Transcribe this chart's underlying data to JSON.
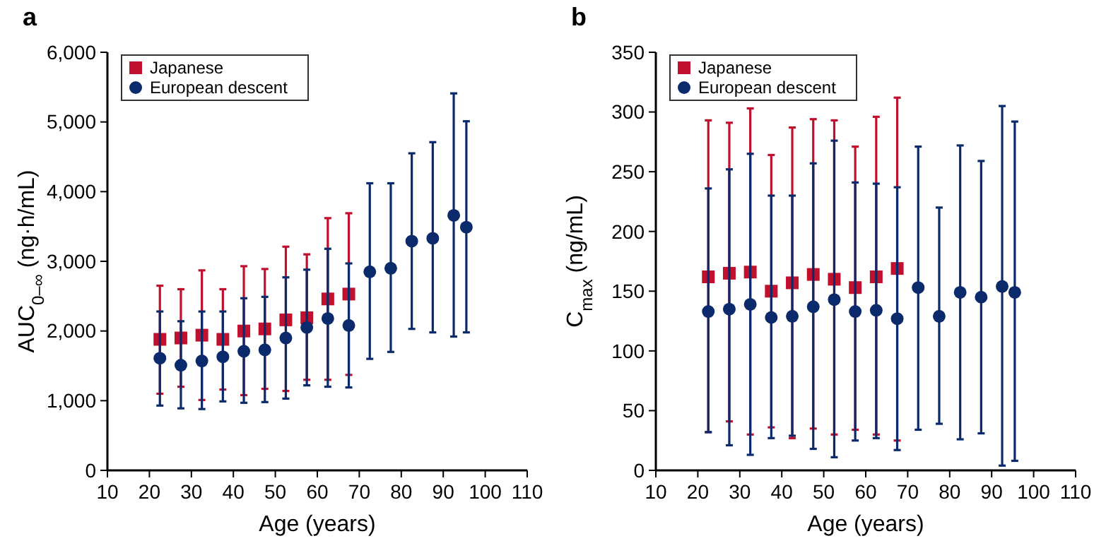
{
  "chart_data": [
    {
      "type": "scatter",
      "title": "a",
      "xlabel": "Age (years)",
      "ylabel": "AUC$_{0–∞}$ (ng·h/mL)",
      "xlim": [
        10,
        110
      ],
      "xticks": [
        10,
        20,
        30,
        40,
        50,
        60,
        70,
        80,
        90,
        100,
        110
      ],
      "ylim": [
        0,
        6000
      ],
      "yticks": [
        {
          "value": 0,
          "label": "0"
        },
        {
          "value": 1000,
          "label": "1,000"
        },
        {
          "value": 2000,
          "label": "2,000"
        },
        {
          "value": 3000,
          "label": "3,000"
        },
        {
          "value": 4000,
          "label": "4,000"
        },
        {
          "value": 5000,
          "label": "5,000"
        },
        {
          "value": 6000,
          "label": "6,000"
        }
      ],
      "grid": false,
      "legend": "top left",
      "series": [
        {
          "name": "Japanese",
          "color": "#c0102e",
          "marker": "square",
          "x": [
            22.5,
            27.5,
            32.5,
            37.5,
            42.5,
            47.5,
            52.5,
            57.5,
            62.5,
            67.5
          ],
          "values": [
            1880,
            1900,
            1940,
            1880,
            2000,
            2030,
            2160,
            2190,
            2460,
            2530
          ],
          "errors": [
            [
              1100,
              2650
            ],
            [
              1200,
              2600
            ],
            [
              1010,
              2870
            ],
            [
              1160,
              2600
            ],
            [
              1080,
              2930
            ],
            [
              1170,
              2890
            ],
            [
              1140,
              3210
            ],
            [
              1300,
              3100
            ],
            [
              1300,
              3620
            ],
            [
              1370,
              3690
            ]
          ]
        },
        {
          "name": "European descent",
          "color": "#0b2a6b",
          "marker": "circle",
          "x": [
            22.5,
            27.5,
            32.5,
            37.5,
            42.5,
            47.5,
            52.5,
            57.5,
            62.5,
            67.5,
            72.5,
            77.5,
            82.5,
            87.5,
            92.5,
            95.5
          ],
          "values": [
            1610,
            1510,
            1570,
            1630,
            1710,
            1730,
            1900,
            2050,
            2180,
            2080,
            2850,
            2900,
            3290,
            3330,
            3660,
            3490
          ],
          "errors": [
            [
              930,
              2280
            ],
            [
              890,
              2140
            ],
            [
              880,
              2280
            ],
            [
              990,
              2280
            ],
            [
              970,
              2470
            ],
            [
              980,
              2490
            ],
            [
              1030,
              2770
            ],
            [
              1220,
              2880
            ],
            [
              1200,
              3180
            ],
            [
              1190,
              2970
            ],
            [
              1600,
              4120
            ],
            [
              1700,
              4120
            ],
            [
              2030,
              4550
            ],
            [
              1980,
              4710
            ],
            [
              1920,
              5410
            ],
            [
              1980,
              5010
            ]
          ]
        }
      ]
    },
    {
      "type": "scatter",
      "title": "b",
      "xlabel": "Age (years)",
      "ylabel": "C$_{max}$ (ng/mL)",
      "xlim": [
        10,
        110
      ],
      "xticks": [
        10,
        20,
        30,
        40,
        50,
        60,
        70,
        80,
        90,
        100,
        110
      ],
      "ylim": [
        0,
        350
      ],
      "yticks": [
        0,
        50,
        100,
        150,
        200,
        250,
        300,
        350
      ],
      "grid": false,
      "legend": "top left",
      "series": [
        {
          "name": "Japanese",
          "color": "#c0102e",
          "marker": "square",
          "x": [
            22.5,
            27.5,
            32.5,
            37.5,
            42.5,
            47.5,
            52.5,
            57.5,
            62.5,
            67.5
          ],
          "values": [
            162,
            165,
            166,
            150,
            157,
            164,
            160,
            153,
            162,
            169
          ],
          "errors": [
            [
              32,
              293
            ],
            [
              41,
              291
            ],
            [
              30,
              303
            ],
            [
              36,
              264
            ],
            [
              27,
              287
            ],
            [
              35,
              294
            ],
            [
              30,
              293
            ],
            [
              34,
              271
            ],
            [
              30,
              296
            ],
            [
              25,
              312
            ]
          ]
        },
        {
          "name": "European descent",
          "color": "#0b2a6b",
          "marker": "circle",
          "x": [
            22.5,
            27.5,
            32.5,
            37.5,
            42.5,
            47.5,
            52.5,
            57.5,
            62.5,
            67.5,
            72.5,
            77.5,
            82.5,
            87.5,
            92.5,
            95.5
          ],
          "values": [
            133,
            135,
            139,
            128,
            129,
            137,
            143,
            133,
            134,
            127,
            153,
            129,
            149,
            145,
            154,
            149
          ],
          "errors": [
            [
              32,
              236
            ],
            [
              21,
              252
            ],
            [
              13,
              265
            ],
            [
              27,
              230
            ],
            [
              29,
              230
            ],
            [
              18,
              257
            ],
            [
              11,
              276
            ],
            [
              25,
              241
            ],
            [
              27,
              240
            ],
            [
              17,
              237
            ],
            [
              34,
              271
            ],
            [
              39,
              220
            ],
            [
              26,
              272
            ],
            [
              31,
              259
            ],
            [
              4,
              305
            ],
            [
              8,
              292
            ]
          ]
        }
      ]
    }
  ]
}
